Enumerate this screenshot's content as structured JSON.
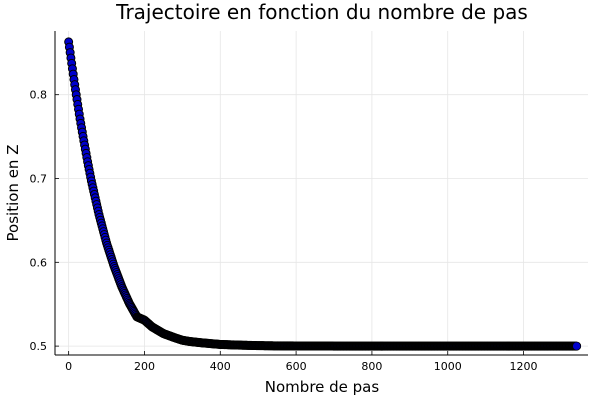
{
  "chart_data": {
    "type": "scatter",
    "title": "Trajectoire en fonction du nombre de pas",
    "xlabel": "Nombre de pas",
    "ylabel": "Position en Z",
    "xlim": [
      -36,
      1370
    ],
    "ylim": [
      0.4894,
      0.876
    ],
    "xticks": [
      "0",
      "200",
      "400",
      "600",
      "800",
      "1000",
      "1200"
    ],
    "xtick_values": [
      0,
      200,
      400,
      600,
      800,
      1000,
      1200
    ],
    "yticks": [
      "0.5",
      "0.6",
      "0.7",
      "0.8"
    ],
    "ytick_values": [
      0.5,
      0.6,
      0.7,
      0.8
    ],
    "grid": true,
    "legend": "none",
    "marker_fill": "#0000cc",
    "marker_edge": "#000000",
    "series": [
      {
        "x": [
          0,
          1,
          5,
          10,
          15,
          20,
          30,
          40,
          50,
          60,
          80,
          100,
          120,
          140,
          160,
          180,
          200,
          220,
          250,
          280,
          300,
          320,
          350,
          400,
          450,
          500,
          550,
          600,
          650,
          700,
          750,
          800,
          850,
          900,
          950,
          1000,
          1050,
          1100,
          1150,
          1200,
          1250,
          1300,
          1340
        ],
        "y": [
          0.863,
          0.86,
          0.847,
          0.831,
          0.815,
          0.8,
          0.771,
          0.745,
          0.72,
          0.697,
          0.657,
          0.623,
          0.595,
          0.571,
          0.551,
          0.535,
          0.531,
          0.523,
          0.515,
          0.51,
          0.507,
          0.5055,
          0.504,
          0.502,
          0.5012,
          0.5006,
          0.5003,
          0.5002,
          0.50012,
          0.50006,
          0.50003,
          0.50002,
          0.50001,
          0.5,
          0.5,
          0.5,
          0.5,
          0.5,
          0.5,
          0.5,
          0.5,
          0.5,
          0.5
        ]
      }
    ]
  }
}
